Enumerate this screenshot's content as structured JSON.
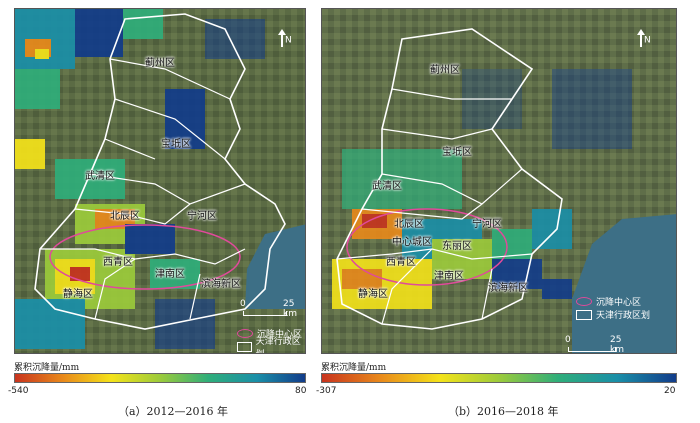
{
  "panels": [
    {
      "id": "a",
      "caption": "（a）2012—2016 年",
      "colorbar_title": "累积沉降量/mm",
      "colorbar_min": "-540",
      "colorbar_max": "80",
      "scale_label": "25 km",
      "scale_zero": "0",
      "north_label": "N",
      "legend": {
        "subsidence_center": "沉降中心区",
        "admin_boundary": "天津行政区划"
      },
      "districts": [
        "蓟州区",
        "宝坻区",
        "武清区",
        "北辰区",
        "宁河区",
        "西青区",
        "津南区",
        "静海区",
        "滨海新区"
      ]
    },
    {
      "id": "b",
      "caption": "（b）2016—2018 年",
      "colorbar_title": "累积沉降量/mm",
      "colorbar_min": "-307",
      "colorbar_max": "20",
      "scale_label": "25 km",
      "scale_zero": "0",
      "north_label": "N",
      "legend": {
        "subsidence_center": "沉降中心区",
        "admin_boundary": "天津行政区划"
      },
      "districts": [
        "蓟州区",
        "宝坻区",
        "武清区",
        "北辰区",
        "宁河区",
        "中心城区",
        "东丽区",
        "西青区",
        "津南区",
        "静海区",
        "滨海新区"
      ]
    }
  ],
  "colors": {
    "ramp": [
      "#c8341e",
      "#e98a1b",
      "#f4e31a",
      "#9ccb3b",
      "#2fae7a",
      "#1a8fa8",
      "#123c8a"
    ],
    "satellite_land": "#5c6b45",
    "sea": "#3d6f86",
    "boundary": "#ffffff",
    "center_ellipse": "#e04a9b"
  }
}
